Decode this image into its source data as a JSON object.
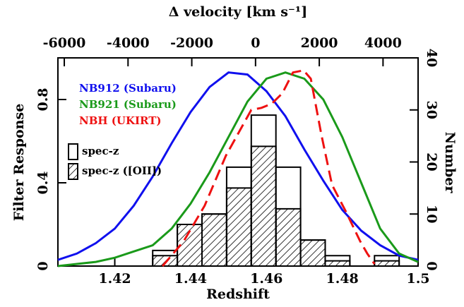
{
  "chart_data": {
    "type": "histogram",
    "xlabel": "Redshift",
    "ylabel": "Filter Response",
    "y2label": "Number",
    "x2label": "Δ velocity [km s⁻¹]",
    "xlim": [
      1.405,
      1.5
    ],
    "xticks": [
      1.42,
      1.44,
      1.46,
      1.48,
      1.5
    ],
    "x2lim": [
      -6200,
      5100
    ],
    "x2ticks": [
      -6000,
      -4000,
      -2000,
      0,
      2000,
      4000
    ],
    "ylim": [
      0,
      1
    ],
    "yticks": [
      0,
      0.4,
      0.8
    ],
    "y2lim": [
      0,
      40
    ],
    "y2ticks": [
      0,
      10,
      20,
      30,
      40
    ],
    "lines": [
      {
        "name": "NB912 (Subaru)",
        "color": "#1010ee",
        "dashed": false,
        "x": [
          1.405,
          1.41,
          1.415,
          1.42,
          1.425,
          1.43,
          1.435,
          1.44,
          1.445,
          1.45,
          1.455,
          1.46,
          1.465,
          1.47,
          1.475,
          1.48,
          1.485,
          1.49,
          1.495,
          1.5
        ],
        "values": [
          0.03,
          0.06,
          0.11,
          0.18,
          0.29,
          0.43,
          0.59,
          0.74,
          0.86,
          0.93,
          0.92,
          0.84,
          0.72,
          0.56,
          0.41,
          0.27,
          0.17,
          0.1,
          0.05,
          0.03
        ]
      },
      {
        "name": "NB921 (Subaru)",
        "color": "#1a9a1a",
        "dashed": false,
        "x": [
          1.405,
          1.41,
          1.415,
          1.42,
          1.425,
          1.43,
          1.435,
          1.44,
          1.445,
          1.45,
          1.455,
          1.46,
          1.465,
          1.47,
          1.475,
          1.48,
          1.485,
          1.49,
          1.495,
          1.5
        ],
        "values": [
          0,
          0.01,
          0.02,
          0.04,
          0.07,
          0.1,
          0.18,
          0.3,
          0.45,
          0.62,
          0.79,
          0.9,
          0.93,
          0.9,
          0.8,
          0.62,
          0.4,
          0.18,
          0.06,
          0.02
        ]
      },
      {
        "name": "NBH (UKIRT)",
        "color": "#ee1111",
        "dashed": true,
        "x": [
          1.4326,
          1.4382,
          1.4437,
          1.4493,
          1.456,
          1.4587,
          1.4614,
          1.4642,
          1.467,
          1.4698,
          1.4717,
          1.4745,
          1.4773,
          1.481,
          1.4847,
          1.4866,
          1.4885
        ],
        "values": [
          0,
          0.12,
          0.29,
          0.53,
          0.75,
          0.76,
          0.78,
          0.83,
          0.93,
          0.94,
          0.9,
          0.63,
          0.39,
          0.26,
          0.12,
          0.06,
          0.01
        ]
      }
    ],
    "bins": [
      1.43,
      1.4365,
      1.443,
      1.4495,
      1.456,
      1.4625,
      1.469,
      1.4755,
      1.482,
      1.4885,
      1.495
    ],
    "series": [
      {
        "name": "spec-z",
        "hatched": false,
        "axis": "y2",
        "values": [
          3,
          8,
          10,
          19,
          29,
          19,
          5,
          2,
          0,
          2
        ]
      },
      {
        "name": "spec-z ([OII])",
        "hatched": true,
        "axis": "y2",
        "values": [
          2,
          8,
          10,
          15,
          23,
          11,
          5,
          1,
          0,
          1
        ]
      }
    ]
  }
}
